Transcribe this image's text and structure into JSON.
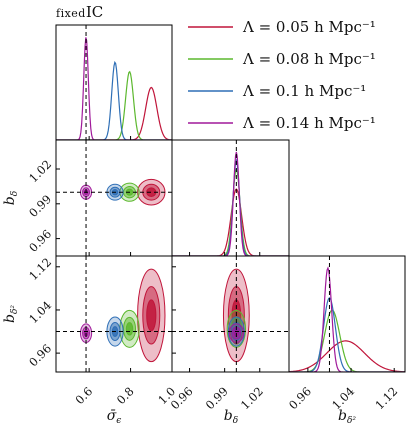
{
  "title_prefix": "fixed",
  "title_suffix": "IC",
  "chart_data": {
    "type": "corner",
    "parameters": [
      "sigma_eps",
      "b_delta",
      "b_delta2"
    ],
    "labels": {
      "sigma_eps": "σ̄",
      "sigma_eps_sub": "ϵ",
      "b_delta": "b",
      "b_delta_sub": "δ",
      "b_delta2": "b",
      "b_delta2_sub": "δ²"
    },
    "truth": {
      "sigma_eps": 0.585,
      "b_delta": 1.0,
      "b_delta2": 1.0
    },
    "ranges": {
      "sigma_eps": [
        0.44,
        1.0
      ],
      "b_delta": [
        0.945,
        1.045
      ],
      "b_delta2": [
        0.925,
        1.14
      ]
    },
    "ticks": {
      "sigma_eps": {
        "values": [
          0.6,
          0.8,
          1.0
        ],
        "labels": [
          "0.6",
          "0.8",
          "1.0"
        ]
      },
      "b_delta": {
        "values": [
          0.96,
          0.99,
          1.02
        ],
        "labels": [
          "0.96",
          "0.99",
          "1.02"
        ]
      },
      "b_delta2": {
        "values": [
          0.96,
          1.04,
          1.12
        ],
        "labels": [
          "0.96",
          "1.04",
          "1.12"
        ]
      }
    },
    "series": [
      {
        "name": "Λ = 0.05 h Mpc⁻¹",
        "color": "#c0153a",
        "mean": {
          "sigma_eps": 0.9,
          "b_delta": 1.0,
          "b_delta2": 1.03
        },
        "sd": {
          "sigma_eps": 0.027,
          "b_delta": 0.0045,
          "b_delta2": 0.035
        }
      },
      {
        "name": "Λ = 0.08 h Mpc⁻¹",
        "color": "#5cb82e",
        "mean": {
          "sigma_eps": 0.795,
          "b_delta": 1.0,
          "b_delta2": 1.005
        },
        "sd": {
          "sigma_eps": 0.019,
          "b_delta": 0.0032,
          "b_delta2": 0.014
        }
      },
      {
        "name": "Λ = 0.1 h Mpc⁻¹",
        "color": "#2f6fb6",
        "mean": {
          "sigma_eps": 0.725,
          "b_delta": 1.0,
          "b_delta2": 1.0
        },
        "sd": {
          "sigma_eps": 0.016,
          "b_delta": 0.0028,
          "b_delta2": 0.011
        }
      },
      {
        "name": "Λ = 0.14 h Mpc⁻¹",
        "color": "#a0199a",
        "mean": {
          "sigma_eps": 0.585,
          "b_delta": 1.0,
          "b_delta2": 0.997
        },
        "sd": {
          "sigma_eps": 0.011,
          "b_delta": 0.0025,
          "b_delta2": 0.007
        }
      }
    ]
  }
}
